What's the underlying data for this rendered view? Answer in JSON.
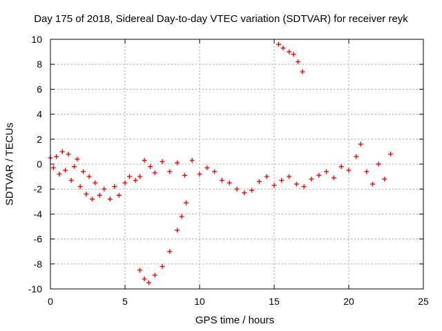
{
  "chart_data": {
    "type": "scatter",
    "title": "Day 175 of 2018, Sidereal Day-to-day VTEC variation (SDTVAR) for receiver reyk",
    "xlabel": "GPS time / hours",
    "ylabel": "SDTVAR / TECUs",
    "xlim": [
      0,
      25
    ],
    "ylim": [
      -10,
      10
    ],
    "xticks": [
      "0",
      "5",
      "10",
      "15",
      "20",
      "25"
    ],
    "yticks": [
      "-10",
      "-8",
      "-6",
      "-4",
      "-2",
      "0",
      "2",
      "4",
      "6",
      "8",
      "10"
    ],
    "grid": true,
    "marker": "+",
    "series": [
      {
        "name": "reyk",
        "color": "#ff0000",
        "points": [
          [
            0.0,
            0.5
          ],
          [
            0.2,
            -0.3
          ],
          [
            0.4,
            0.6
          ],
          [
            0.6,
            -0.8
          ],
          [
            0.8,
            1.0
          ],
          [
            1.0,
            -0.5
          ],
          [
            1.2,
            0.8
          ],
          [
            1.4,
            -1.3
          ],
          [
            1.6,
            -0.2
          ],
          [
            1.8,
            0.4
          ],
          [
            2.0,
            -1.8
          ],
          [
            2.2,
            -0.6
          ],
          [
            2.4,
            -2.4
          ],
          [
            2.6,
            -1.0
          ],
          [
            2.8,
            -2.8
          ],
          [
            3.0,
            -1.5
          ],
          [
            3.3,
            -2.5
          ],
          [
            3.6,
            -2.0
          ],
          [
            4.0,
            -2.8
          ],
          [
            4.3,
            -1.8
          ],
          [
            4.6,
            -2.5
          ],
          [
            5.0,
            -1.5
          ],
          [
            5.3,
            -1.0
          ],
          [
            5.7,
            -1.3
          ],
          [
            6.0,
            -1.0
          ],
          [
            6.3,
            0.3
          ],
          [
            6.7,
            -0.2
          ],
          [
            7.0,
            -0.7
          ],
          [
            7.5,
            0.2
          ],
          [
            8.0,
            -0.6
          ],
          [
            8.5,
            0.1
          ],
          [
            9.0,
            -0.9
          ],
          [
            9.5,
            0.3
          ],
          [
            10.0,
            -0.8
          ],
          [
            10.5,
            -0.3
          ],
          [
            11.0,
            -0.6
          ],
          [
            11.5,
            -1.3
          ],
          [
            12.0,
            -1.5
          ],
          [
            12.5,
            -2.0
          ],
          [
            13.0,
            -2.3
          ],
          [
            13.5,
            -2.1
          ],
          [
            14.0,
            -1.4
          ],
          [
            14.5,
            -1.0
          ],
          [
            15.0,
            -1.7
          ],
          [
            15.5,
            -1.3
          ],
          [
            16.0,
            -1.0
          ],
          [
            16.5,
            -1.6
          ],
          [
            17.0,
            -1.8
          ],
          [
            17.5,
            -1.2
          ],
          [
            18.0,
            -0.9
          ],
          [
            18.5,
            -0.6
          ],
          [
            19.0,
            -1.1
          ],
          [
            19.5,
            -0.2
          ],
          [
            20.0,
            -0.5
          ],
          [
            20.5,
            0.6
          ],
          [
            20.8,
            1.6
          ],
          [
            21.2,
            -0.6
          ],
          [
            21.6,
            -1.6
          ],
          [
            22.0,
            0.0
          ],
          [
            22.4,
            -1.2
          ],
          [
            22.8,
            0.8
          ],
          [
            6.0,
            -8.5
          ],
          [
            6.3,
            -9.2
          ],
          [
            6.6,
            -9.5
          ],
          [
            7.0,
            -8.9
          ],
          [
            7.5,
            -8.2
          ],
          [
            8.0,
            -7.0
          ],
          [
            8.5,
            -5.3
          ],
          [
            8.8,
            -4.2
          ],
          [
            9.1,
            -3.1
          ],
          [
            15.3,
            9.6
          ],
          [
            15.6,
            9.3
          ],
          [
            16.0,
            9.0
          ],
          [
            16.3,
            8.8
          ],
          [
            16.6,
            8.2
          ],
          [
            16.9,
            7.4
          ]
        ]
      }
    ]
  }
}
